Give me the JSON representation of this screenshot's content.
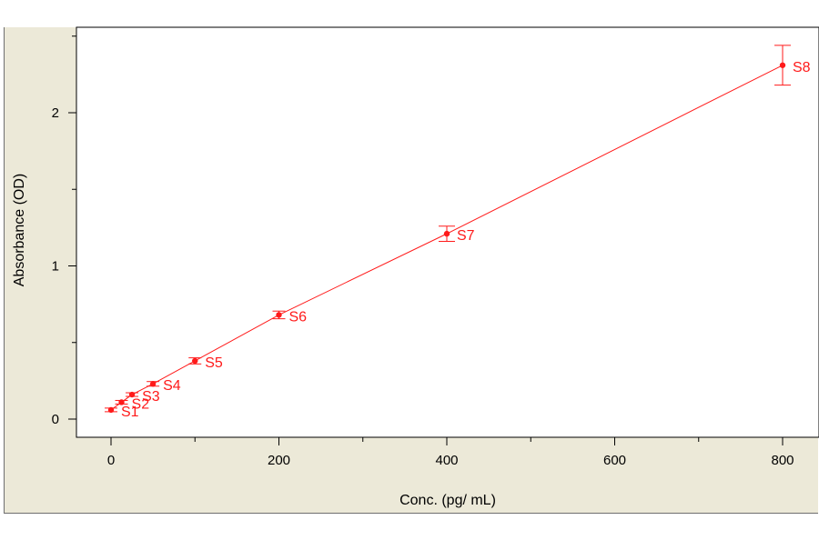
{
  "chart_data": {
    "type": "scatter",
    "title": "",
    "xlabel": "Conc. (pg/ mL)",
    "ylabel": "Absorbance (OD)",
    "xlim": [
      -20,
      810
    ],
    "ylim": [
      -0.05,
      2.55
    ],
    "x_ticks": [
      "0",
      "200",
      "400",
      "600",
      "800"
    ],
    "x_tick_values": [
      0,
      200,
      400,
      600,
      800
    ],
    "y_ticks": [
      "0",
      "1",
      "2"
    ],
    "y_tick_values": [
      0,
      1,
      2
    ],
    "grid": false,
    "series": [
      {
        "color": "#ff1a1a",
        "points": [
          {
            "label": "S1",
            "x": 0,
            "y": 0.06,
            "err": 0.01
          },
          {
            "label": "S2",
            "x": 12.5,
            "y": 0.11,
            "err": 0.01
          },
          {
            "label": "S3",
            "x": 25,
            "y": 0.16,
            "err": 0.01
          },
          {
            "label": "S4",
            "x": 50,
            "y": 0.23,
            "err": 0.015
          },
          {
            "label": "S5",
            "x": 100,
            "y": 0.38,
            "err": 0.02
          },
          {
            "label": "S6",
            "x": 200,
            "y": 0.68,
            "err": 0.025
          },
          {
            "label": "S7",
            "x": 400,
            "y": 1.21,
            "err": 0.05
          },
          {
            "label": "S8",
            "x": 800,
            "y": 2.31,
            "err": 0.13
          }
        ]
      }
    ]
  }
}
